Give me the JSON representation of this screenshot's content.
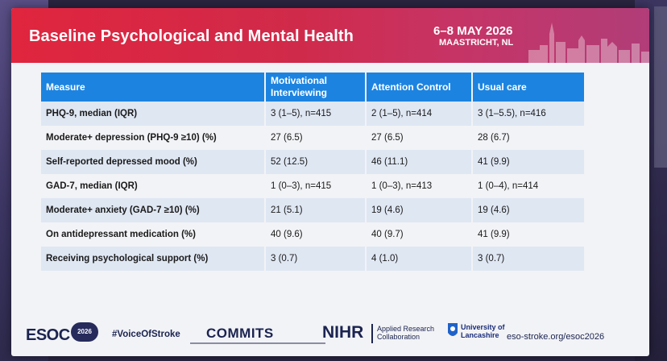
{
  "slide": {
    "title": "Baseline Psychological and Mental Health",
    "event_dates": "6–8 MAY 2026",
    "event_place": "MAASTRICHT, NL"
  },
  "table": {
    "headers": [
      "Measure",
      "Motivational Interviewing",
      "Attention Control",
      "Usual care"
    ],
    "rows": [
      [
        "PHQ-9, median (IQR)",
        "3 (1–5), n=415",
        "2 (1–5), n=414",
        "3 (1–5.5), n=416"
      ],
      [
        "Moderate+ depression (PHQ-9 ≥10) (%)",
        "27 (6.5)",
        "27 (6.5)",
        "28 (6.7)"
      ],
      [
        "Self-reported depressed mood (%)",
        "52 (12.5)",
        "46 (11.1)",
        "41 (9.9)"
      ],
      [
        "GAD-7, median (IQR)",
        "1 (0–3), n=415",
        "1 (0–3), n=413",
        "1 (0–4), n=414"
      ],
      [
        "Moderate+ anxiety (GAD-7 ≥10) (%)",
        "21 (5.1)",
        "19 (4.6)",
        "19 (4.6)"
      ],
      [
        "On antidepressant medication (%)",
        "40 (9.6)",
        "40 (9.7)",
        "41 (9.9)"
      ],
      [
        "Receiving psychological support (%)",
        "3 (0.7)",
        "4 (1.0)",
        "3 (0.7)"
      ]
    ]
  },
  "footer": {
    "esoc_logo": "ESOC",
    "esoc_year": "2026",
    "hashtag": "#VoiceOfStroke",
    "commits_logo": "COMMITS",
    "nihr_logo": "NIHR",
    "arc_line1": "Applied Research",
    "arc_line2": "Collaboration",
    "uni_line1": "University of",
    "uni_line2": "Lancashire",
    "weblink": "eso-stroke.org/esoc2026"
  },
  "colors": {
    "header_red": "#e0253e",
    "header_magenta": "#b13d78",
    "table_header_blue": "#1c84e0",
    "row_stripe": "#dfe7f3",
    "navy": "#1b2350"
  }
}
